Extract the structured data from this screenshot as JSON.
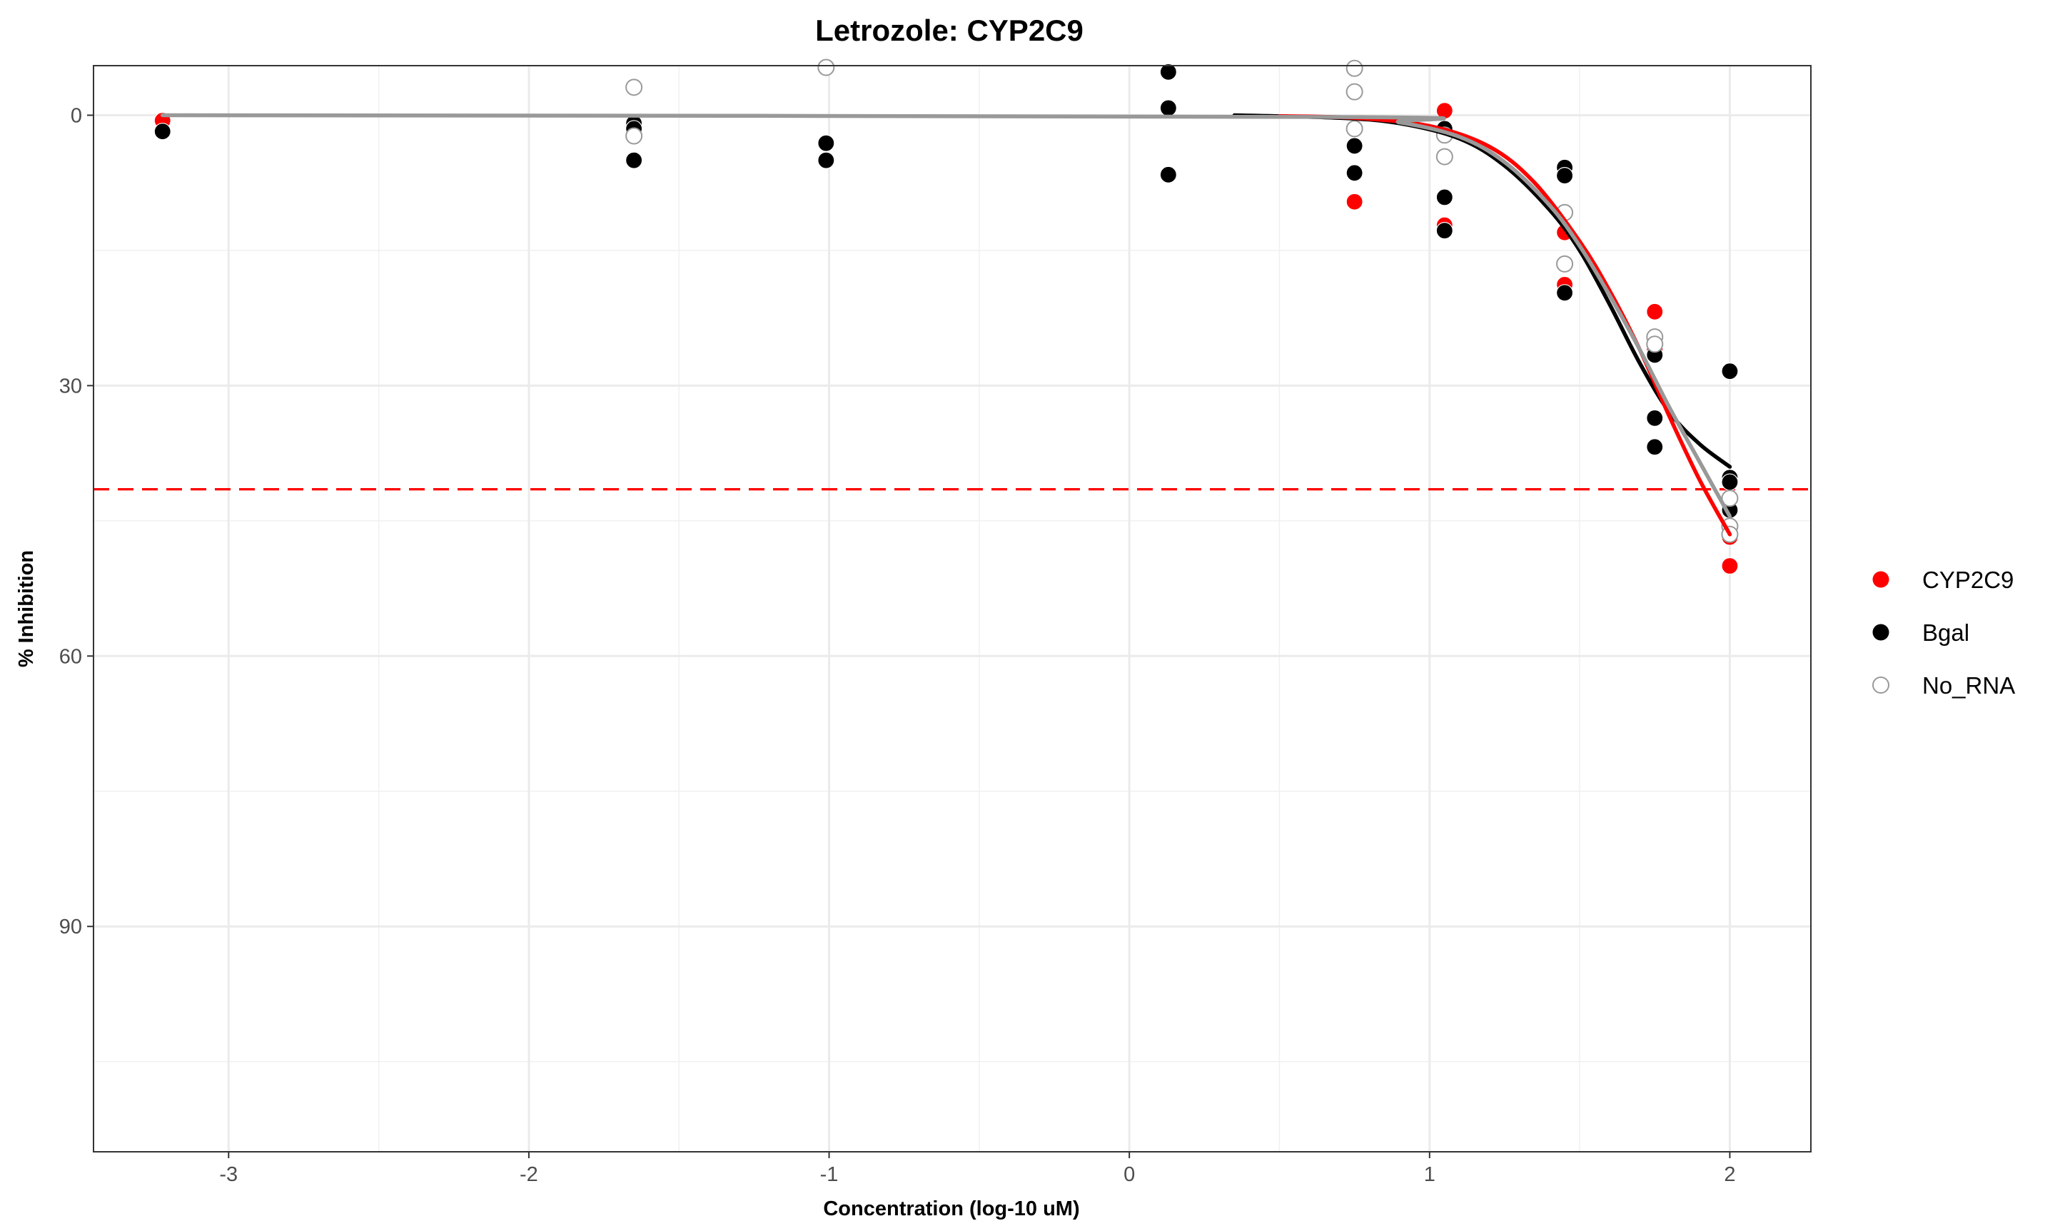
{
  "chart_data": {
    "type": "scatter",
    "title": "Letrozole: CYP2C9",
    "xlabel": "Concentration (log-10 uM)",
    "ylabel": "% Inhibition",
    "xlim": [
      -3.45,
      2.27
    ],
    "ylim": [
      115,
      -5.5
    ],
    "y_reversed": true,
    "x_ticks": [
      -3,
      -2,
      -1,
      0,
      1,
      2
    ],
    "x_tick_labels": [
      "-3",
      "-2",
      "-1",
      "0",
      "1",
      "2"
    ],
    "y_ticks": [
      0,
      30,
      60,
      90
    ],
    "y_tick_labels": [
      "0",
      "30",
      "60",
      "90"
    ],
    "grid": true,
    "legend_position": "right",
    "threshold": {
      "y": 41.5,
      "color": "#ff0000",
      "style": "dashed"
    },
    "series": [
      {
        "name": "CYP2C9",
        "color": "#ff0000",
        "marker": "filled",
        "points": [
          [
            -3.22,
            0.6
          ],
          [
            1.05,
            -0.5
          ],
          [
            1.05,
            12.2
          ],
          [
            0.75,
            9.6
          ],
          [
            1.45,
            13.0
          ],
          [
            1.45,
            18.8
          ],
          [
            1.75,
            21.8
          ],
          [
            1.75,
            26.0
          ],
          [
            1.75,
            36.8
          ],
          [
            2.0,
            40.2
          ],
          [
            2.0,
            46.8
          ],
          [
            2.0,
            50.0
          ]
        ],
        "curve": [
          [
            0.5,
            0.1
          ],
          [
            0.75,
            0.3
          ],
          [
            1.0,
            1.2
          ],
          [
            1.2,
            3.5
          ],
          [
            1.35,
            7.5
          ],
          [
            1.5,
            14.0
          ],
          [
            1.6,
            19.5
          ],
          [
            1.7,
            26.0
          ],
          [
            1.8,
            33.5
          ],
          [
            1.9,
            40.5
          ],
          [
            2.0,
            46.5
          ]
        ]
      },
      {
        "name": "Bgal",
        "color": "#000000",
        "marker": "filled",
        "points": [
          [
            -3.22,
            1.8
          ],
          [
            -1.65,
            0.9
          ],
          [
            -1.65,
            1.5
          ],
          [
            -1.65,
            5.0
          ],
          [
            -1.01,
            3.1
          ],
          [
            -1.01,
            5.0
          ],
          [
            0.13,
            -4.8
          ],
          [
            0.13,
            -0.8
          ],
          [
            0.13,
            6.6
          ],
          [
            0.75,
            3.4
          ],
          [
            0.75,
            6.4
          ],
          [
            1.05,
            1.5
          ],
          [
            1.05,
            9.1
          ],
          [
            1.05,
            12.8
          ],
          [
            1.45,
            5.8
          ],
          [
            1.45,
            6.7
          ],
          [
            1.45,
            19.7
          ],
          [
            1.75,
            26.6
          ],
          [
            1.75,
            33.6
          ],
          [
            1.75,
            36.8
          ],
          [
            2.0,
            28.4
          ],
          [
            2.0,
            40.2
          ],
          [
            2.0,
            40.7
          ],
          [
            2.0,
            43.8
          ]
        ],
        "curve": [
          [
            0.35,
            0.0
          ],
          [
            0.7,
            0.3
          ],
          [
            0.9,
            0.9
          ],
          [
            1.1,
            2.6
          ],
          [
            1.25,
            5.6
          ],
          [
            1.4,
            10.5
          ],
          [
            1.5,
            15.0
          ],
          [
            1.6,
            21.0
          ],
          [
            1.7,
            27.5
          ],
          [
            1.8,
            33.0
          ],
          [
            1.9,
            36.5
          ],
          [
            2.0,
            39.0
          ]
        ]
      },
      {
        "name": "No_RNA",
        "color": "#999999",
        "marker": "open",
        "points": [
          [
            -1.65,
            -3.1
          ],
          [
            -1.65,
            2.3
          ],
          [
            -1.01,
            -5.3
          ],
          [
            0.75,
            -5.2
          ],
          [
            0.75,
            -2.6
          ],
          [
            0.75,
            1.5
          ],
          [
            1.05,
            2.2
          ],
          [
            1.05,
            4.6
          ],
          [
            1.45,
            10.8
          ],
          [
            1.45,
            16.5
          ],
          [
            1.75,
            24.6
          ],
          [
            1.75,
            25.4
          ],
          [
            2.0,
            42.5
          ],
          [
            2.0,
            45.6
          ],
          [
            2.0,
            46.5
          ]
        ],
        "curve": [
          [
            -3.22,
            0.0
          ],
          [
            0.7,
            0.2
          ],
          [
            0.9,
            0.8
          ],
          [
            1.1,
            2.4
          ],
          [
            1.25,
            5.2
          ],
          [
            1.4,
            10.0
          ],
          [
            1.5,
            14.5
          ],
          [
            1.6,
            20.0
          ],
          [
            1.7,
            26.0
          ],
          [
            1.8,
            32.5
          ],
          [
            1.9,
            38.5
          ],
          [
            2.0,
            44.5
          ]
        ]
      }
    ]
  }
}
